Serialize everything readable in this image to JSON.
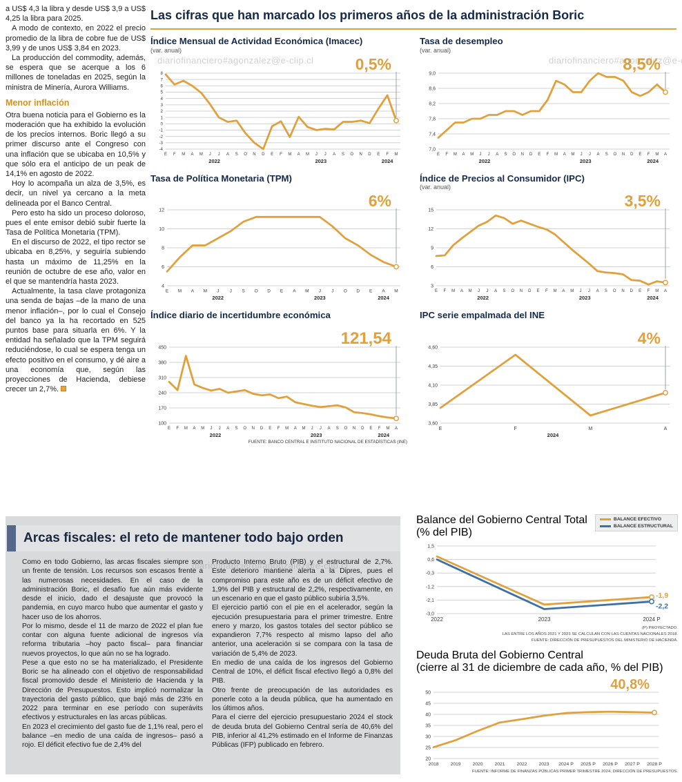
{
  "watermark": "diariofinanciero#agonzalez@e-clip.cl",
  "colors": {
    "accent_orange": "#E0A03C",
    "navy": "#15294B",
    "structural_blue": "#3E6FA5",
    "panel_gray": "#D8DADC"
  },
  "left_article": {
    "paragraphs_top": [
      "a US$ 4,3 la libra y desde US$ 3,9 a US$ 4,25 la libra para 2025.",
      "A modo de contexto, en 2022 el precio promedio de la libra de cobre fue de US$ 3,99 y de unos US$ 3,84 en 2023.",
      "La producción del commodity, además, se espera que se acerque a los 6 millones de toneladas en 2025, según la ministra de Minería, Aurora Williams."
    ],
    "section_heading": "Menor inflación",
    "paragraphs_bottom": [
      "Otra buena noticia para el Gobierno es la moderación que ha exhibido la evolución de los precios internos. Boric llegó a su primer discurso ante el Congreso con una inflación que se ubicaba en 10,5% y que sólo era el anticipo de un peak de 14,1% en agosto de 2022.",
      "Hoy lo acompaña un alza de 3,5%, es decir, un nivel ya cercano a la meta delineada por el Banco Central.",
      "Pero esto ha sido un proceso doloroso, pues el ente emisor debió subir fuerte la Tasa de Política Monetaria (TPM).",
      "En el discurso de 2022, el tipo rector se ubicaba en 8,25%, y seguiría subiendo hasta un máximo de 11,25% en la reunión de octubre de ese año, valor en el que se mantendría hasta 2023.",
      "Actualmente, la tasa clave protagoniza una senda de bajas –de la mano de una menor inflación–, por lo cual el Consejo del banco ya la ha recortado en 525 puntos base para situarla en 6%. Y la entidad ha señalado que la TPM seguirá reduciéndose, lo cual se espera tenga un efecto positivo en el consumo, y dé aire a una economía que, según las proyecciones de Hacienda, debiese crecer un 2,7%."
    ]
  },
  "main": {
    "title": "Las cifras que han marcado los primeros años de la administración Boric",
    "source": "FUENTE: BANCO CENTRAL E INSTITUTO NACIONAL DE ESTADÍSTICAS (INE)"
  },
  "fiscal": {
    "title": "Arcas fiscales: el reto de mantener todo bajo orden",
    "col1_paragraphs": [
      "Como en todo Gobierno, las arcas fiscales siempre son un frente de tensión. Los recursos son escasos frente a las numerosas necesidades. En el caso de la administración Boric, el desafío fue aún más evidente desde el inicio, dado el desajuste que provocó la pandemia, en cuyo marco hubo que aumentar el gasto y hacer uso de los ahorros.",
      "Por lo mismo, desde el 11 de marzo de 2022 el plan fue contar con alguna fuente adicional de ingresos vía reforma tributaria –hoy pacto fiscal– para financiar nuevos proyectos, lo que aún no se ha logrado.",
      "Pese a que esto no se ha materializado, el Presidente Boric se ha alineado con el objetivo de responsabilidad fiscal promovido desde el Ministerio de Hacienda y la Dirección de Presupuestos. Esto implicó normalizar la trayectoria del gasto público, que bajó más de 23% en 2022 para terminar en ese período con superávits efectivos y estructurales en las arcas públicas.",
      "En 2023 el crecimiento del gasto fue de 1,1% real, pero el balance –en medio de una caída de ingresos– pasó a rojo. El déficit efectivo fue de 2,4% del"
    ],
    "col2_paragraphs": [
      "Producto Interno Bruto (PIB) y el estructural de 2,7%. Este deterioro mantiene alerta a la Dipres, pues el compromiso para este año es de un déficit efectivo de 1,9% del PIB y estructural de 2,2%, respectivamente, en un escenario en que el gasto público subiría 3,5%.",
      "El ejercicio partió con el pie en el acelerador, según la ejecución presupuestaria para el primer trimestre. Entre enero y marzo, los gastos totales del sector público se expandieron 7,7% respecto al mismo lapso del año anterior, una aceleración si se compara con la tasa de variación de 5,4% de 2023.",
      "En medio de una caída de los ingresos del Gobierno Central de 10%, el déficit fiscal efectivo llegó a 0,8% del PIB.",
      "Otro frente de preocupación de las autoridades es ponerle coto a la deuda pública, que ha aumentado en los últimos años.",
      "Para el cierre del ejercicio presupuestario 2024 el stock de deuda bruta del Gobierno Central sería de 40,6% del PIB, inferior al 41,2% estimado en el Informe de Finanzas Públicas (IFP) publicado en febrero."
    ]
  },
  "chart_data": [
    {
      "type": "line",
      "title": "Índice Mensual de Actividad Económica (Imacec)",
      "subtitle": "(var. anual)",
      "big_value": "0,5%",
      "color": "#E0A03C",
      "categories": [
        "E",
        "F",
        "M",
        "A",
        "M",
        "J",
        "J",
        "A",
        "S",
        "O",
        "N",
        "D",
        "E",
        "F",
        "M",
        "A",
        "M",
        "J",
        "J",
        "A",
        "S",
        "O",
        "N",
        "D",
        "E",
        "F",
        "M"
      ],
      "years": [
        {
          "label": "2022",
          "start": 0,
          "end": 11
        },
        {
          "label": "2023",
          "start": 12,
          "end": 23
        },
        {
          "label": "2024",
          "start": 24,
          "end": 26
        }
      ],
      "ylim": [
        -4,
        8
      ],
      "yticks": [
        8,
        7,
        6,
        5,
        4,
        3,
        2,
        1,
        0,
        -1,
        -2,
        -3,
        -4
      ],
      "ytick_labels": [
        "8",
        "7",
        "6",
        "5",
        "4",
        "3",
        "2",
        "1",
        "0",
        "-1",
        "-2",
        "-3",
        "-4"
      ],
      "values": [
        7.8,
        6.2,
        6.8,
        6.0,
        4.9,
        3.1,
        1.0,
        0.3,
        0.5,
        -1.5,
        -3.0,
        -4.0,
        -0.4,
        0.4,
        -2.1,
        1.1,
        -0.5,
        -1.0,
        -0.8,
        -0.9,
        0.3,
        0.3,
        0.5,
        0.1,
        2.4,
        4.5,
        0.5
      ]
    },
    {
      "type": "line",
      "title": "Tasa de desempleo",
      "subtitle": "(var. anual)",
      "big_value": "8,5%",
      "color": "#E0A03C",
      "categories": [
        "E",
        "F",
        "M",
        "A",
        "M",
        "J",
        "J",
        "A",
        "S",
        "O",
        "N",
        "D",
        "E",
        "F",
        "M",
        "A",
        "M",
        "J",
        "J",
        "A",
        "S",
        "O",
        "N",
        "D",
        "E",
        "F",
        "M",
        "A"
      ],
      "years": [
        {
          "label": "2022",
          "start": 0,
          "end": 11
        },
        {
          "label": "2023",
          "start": 12,
          "end": 23
        },
        {
          "label": "2024",
          "start": 24,
          "end": 27
        }
      ],
      "ylim": [
        7.0,
        9.0
      ],
      "yticks": [
        9.0,
        8.6,
        8.2,
        7.8,
        7.4,
        7.0
      ],
      "ytick_labels": [
        "9,0",
        "8,6",
        "8,2",
        "7,8",
        "7,4",
        "7,0"
      ],
      "values": [
        7.3,
        7.5,
        7.7,
        7.7,
        7.8,
        7.8,
        7.9,
        7.9,
        8.0,
        8.0,
        7.9,
        8.0,
        8.0,
        8.3,
        8.8,
        8.7,
        8.5,
        8.5,
        8.8,
        9.0,
        8.9,
        8.9,
        8.8,
        8.5,
        8.4,
        8.5,
        8.7,
        8.5
      ]
    },
    {
      "type": "line",
      "title": "Tasa de Política Monetaria (TPM)",
      "subtitle": "",
      "big_value": "6%",
      "color": "#E0A03C",
      "categories": [
        "E",
        "M",
        "A",
        "M",
        "J",
        "J",
        "S",
        "O",
        "D",
        "E",
        "A",
        "M",
        "J",
        "J",
        "O",
        "D",
        "E",
        "A",
        "M"
      ],
      "years": [
        {
          "label": "2022",
          "start": 0,
          "end": 8
        },
        {
          "label": "2023",
          "start": 9,
          "end": 15
        },
        {
          "label": "2024",
          "start": 16,
          "end": 18
        }
      ],
      "ylim": [
        4,
        12
      ],
      "yticks": [
        12,
        10,
        8,
        6,
        4
      ],
      "ytick_labels": [
        "12",
        "10",
        "8",
        "6",
        "4"
      ],
      "values": [
        5.5,
        7.0,
        8.25,
        8.25,
        9.0,
        9.75,
        10.75,
        11.25,
        11.25,
        11.25,
        11.25,
        11.25,
        11.25,
        10.25,
        9.0,
        8.25,
        7.25,
        6.5,
        6.0
      ]
    },
    {
      "type": "line",
      "title": "Índice de Precios al Consumidor (IPC)",
      "subtitle": "(var. anual)",
      "big_value": "3,5%",
      "color": "#E0A03C",
      "categories": [
        "E",
        "F",
        "M",
        "A",
        "M",
        "J",
        "J",
        "A",
        "S",
        "O",
        "N",
        "D",
        "E",
        "F",
        "M",
        "A",
        "M",
        "J",
        "J",
        "A",
        "S",
        "O",
        "N",
        "D",
        "E",
        "F",
        "M",
        "A"
      ],
      "years": [
        {
          "label": "2022",
          "start": 0,
          "end": 11
        },
        {
          "label": "2023",
          "start": 12,
          "end": 23
        },
        {
          "label": "2024",
          "start": 24,
          "end": 27
        }
      ],
      "ylim": [
        3,
        15
      ],
      "yticks": [
        15,
        12,
        9,
        6,
        3
      ],
      "ytick_labels": [
        "15",
        "12",
        "9",
        "6",
        "3"
      ],
      "values": [
        7.7,
        7.8,
        9.4,
        10.5,
        11.5,
        12.5,
        13.1,
        14.1,
        13.7,
        12.8,
        13.3,
        12.8,
        12.3,
        11.9,
        11.1,
        9.9,
        8.7,
        7.6,
        6.5,
        5.3,
        5.1,
        5.0,
        4.8,
        3.9,
        3.8,
        3.2,
        3.7,
        3.5
      ]
    },
    {
      "type": "line",
      "title": "Índice diario de incertidumbre económica",
      "subtitle": "",
      "big_value": "121,54",
      "color": "#E0A03C",
      "categories": [
        "E",
        "F",
        "M",
        "A",
        "M",
        "J",
        "J",
        "A",
        "S",
        "O",
        "N",
        "D",
        "E",
        "F",
        "M",
        "A",
        "M",
        "J",
        "J",
        "A",
        "S",
        "O",
        "N",
        "D",
        "E",
        "F",
        "M",
        "A"
      ],
      "years": [
        {
          "label": "2022",
          "start": 0,
          "end": 11
        },
        {
          "label": "2023",
          "start": 12,
          "end": 23
        },
        {
          "label": "2024",
          "start": 24,
          "end": 27
        }
      ],
      "ylim": [
        100,
        450
      ],
      "yticks": [
        450,
        380,
        310,
        240,
        170,
        100
      ],
      "ytick_labels": [
        "450",
        "380",
        "310",
        "240",
        "170",
        "100"
      ],
      "values": [
        290,
        252,
        410,
        278,
        262,
        250,
        258,
        240,
        246,
        252,
        235,
        228,
        232,
        215,
        222,
        196,
        188,
        180,
        174,
        178,
        182,
        172,
        150,
        146,
        140,
        132,
        126,
        121.54
      ]
    },
    {
      "type": "line",
      "title": "IPC serie empalmada del INE",
      "subtitle": "",
      "big_value": "4%",
      "color": "#E0A03C",
      "categories": [
        "E",
        "F",
        "M",
        "A"
      ],
      "years": [
        {
          "label": "2024",
          "start": 0,
          "end": 3
        }
      ],
      "ylim": [
        3.6,
        4.6
      ],
      "yticks": [
        4.6,
        4.35,
        4.1,
        3.85,
        3.6
      ],
      "ytick_labels": [
        "4,60",
        "4,35",
        "4,10",
        "3,85",
        "3,60"
      ],
      "values": [
        3.8,
        4.5,
        3.7,
        4.0
      ]
    },
    {
      "type": "line",
      "title": "Balance del Gobierno Central Total",
      "subtitle": "(% del PIB)",
      "categories": [
        "2022",
        "2023",
        "2024 P"
      ],
      "ylim": [
        -3.0,
        1.5
      ],
      "yticks": [
        1.5,
        0.6,
        -0.3,
        -1.2,
        -2.1,
        -3.0
      ],
      "ytick_labels": [
        "1,5",
        "0,6",
        "-0,3",
        "-1,2",
        "-2,1",
        "-3,0"
      ],
      "series": [
        {
          "name": "BALANCE EFECTIVO",
          "color": "#E0A03C",
          "values": [
            0.8,
            -2.4,
            -1.9
          ],
          "end_label": "-1,9"
        },
        {
          "name": "BALANCE ESTRUCTURAL",
          "color": "#3E6FA5",
          "values": [
            0.6,
            -2.7,
            -2.2
          ],
          "end_label": "-2,2"
        }
      ],
      "footnotes": [
        "(P) PROYECTADO.",
        "LAS ENTRE LOS AÑOS 2021 Y 2023 SE CALCULAN CON LAS CUENTAS NACIONALES 2018.",
        "FUENTE: DIRECCIÓN DE PRESUPUESTOS DEL MINISTERIO DE HACIENDA."
      ]
    },
    {
      "type": "line",
      "title": "Deuda Bruta del Gobierno Central",
      "subtitle": "(cierre al 31 de diciembre de cada año, % del PIB)",
      "big_value": "40,8%",
      "color": "#E0A03C",
      "categories": [
        "2018",
        "2019",
        "2020",
        "2021",
        "2022",
        "2023",
        "2024 P",
        "2025 P",
        "2026 P",
        "2027 P",
        "2028 P"
      ],
      "ylim": [
        20,
        50
      ],
      "yticks": [
        50,
        45,
        40,
        35,
        30,
        25,
        20
      ],
      "ytick_labels": [
        "50",
        "45",
        "40",
        "35",
        "30",
        "25",
        "20"
      ],
      "values": [
        25.1,
        28.3,
        32.5,
        36.3,
        37.8,
        39.4,
        40.6,
        41.0,
        41.2,
        41.0,
        40.8
      ],
      "footnote": "FUENTE: INFORME DE FINANZAS PÚBLICAS PRIMER TRIMESTRE 2024, DIRECCIÓN DE PRESUPUESTOS."
    }
  ]
}
